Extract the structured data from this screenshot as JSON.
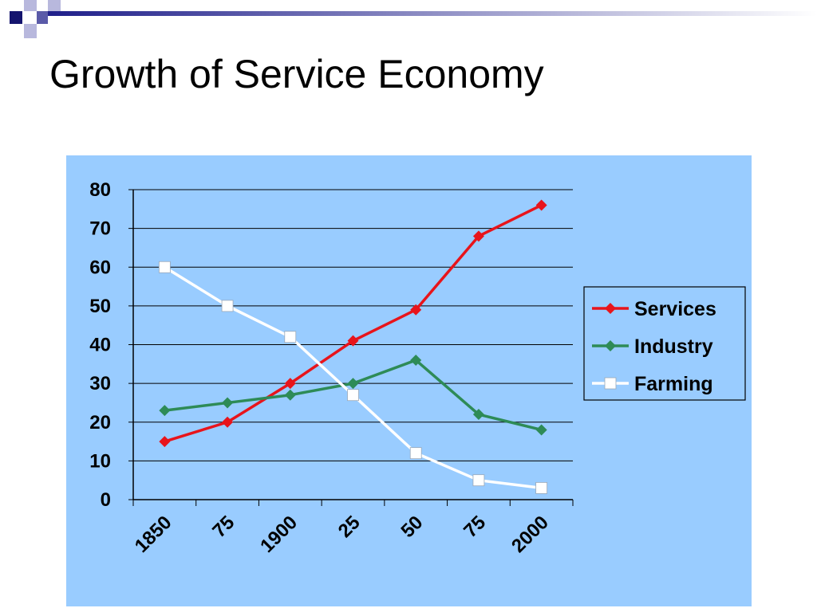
{
  "slide": {
    "title": "Growth of Service Economy"
  },
  "colors": {
    "panel_background": "#99CCFF",
    "axis_line": "#000000",
    "title_bar_gradient_start": "#1F1F8A",
    "title_bar_gradient_end": "#FFFFFF",
    "decor_squares": [
      "#14146E",
      "#5A5AA8",
      "#B8B8DD"
    ]
  },
  "chart_data": {
    "type": "line",
    "categories": [
      "1850",
      "75",
      "1900",
      "25",
      "50",
      "75",
      "2000"
    ],
    "ylim": [
      0,
      80
    ],
    "yticks": [
      "0",
      "10",
      "20",
      "30",
      "40",
      "50",
      "60",
      "70",
      "80"
    ],
    "grid": "horizontal",
    "legend_position": "right",
    "title": "",
    "xlabel": "",
    "ylabel": "",
    "series": [
      {
        "name": "Services",
        "color": "#E8141B",
        "marker": "diamond",
        "values": [
          15,
          20,
          30,
          41,
          49,
          68,
          76
        ]
      },
      {
        "name": "Industry",
        "color": "#2E8B57",
        "marker": "diamond",
        "values": [
          23,
          25,
          27,
          30,
          36,
          22,
          18
        ]
      },
      {
        "name": "Farming",
        "color": "#FFFFFF",
        "marker": "square",
        "values": [
          60,
          50,
          42,
          27,
          12,
          5,
          3
        ]
      }
    ]
  }
}
